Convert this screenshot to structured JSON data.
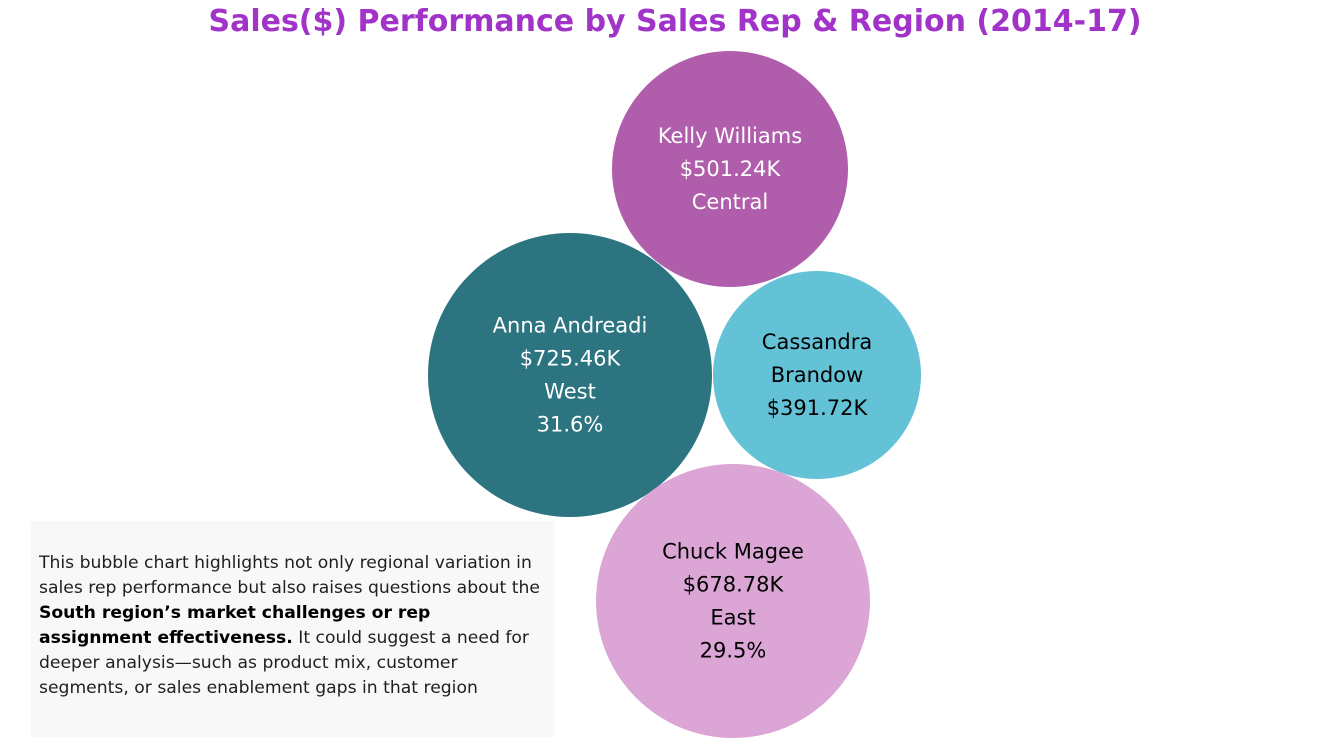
{
  "chart_data": {
    "type": "bubble",
    "title": "Sales($) Performance by Sales Rep & Region (2014-17)",
    "bubbles": [
      {
        "rep": "Kelly Williams",
        "sales": 501.24,
        "sales_label": "$501.24K",
        "region": "Central",
        "percent": "",
        "color": "#b05eab",
        "text_color": "#ffffff"
      },
      {
        "rep": "Anna Andreadi",
        "sales": 725.46,
        "sales_label": "$725.46K",
        "region": "West",
        "percent": "31.6%",
        "color": "#2b7480",
        "text_color": "#ffffff"
      },
      {
        "rep": "Cassandra Brandow",
        "sales": 391.72,
        "sales_label": "$391.72K",
        "region": "",
        "percent": "",
        "color": "#63c2d6",
        "text_color": "#000000"
      },
      {
        "rep": "Chuck Magee",
        "sales": 678.78,
        "sales_label": "$678.78K",
        "region": "East",
        "percent": "29.5%",
        "color": "#dba6d6",
        "text_color": "#000000"
      }
    ]
  },
  "colors": {
    "title": "#a133c9"
  },
  "note": {
    "before": "This bubble chart highlights not only regional variation in sales rep performance but also raises questions about the ",
    "bold": "South region’s market challenges or rep assignment effectiveness.",
    "after": " It could suggest a need for deeper analysis—such as product mix, customer segments, or sales enablement gaps in that region"
  }
}
